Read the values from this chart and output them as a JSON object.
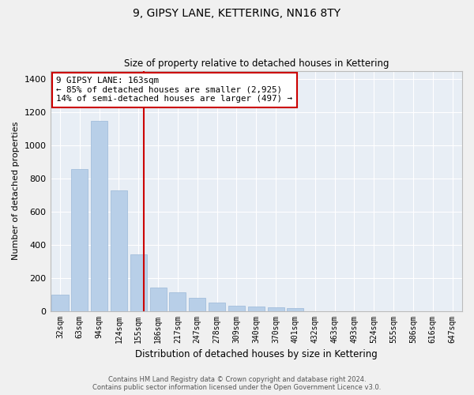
{
  "title": "9, GIPSY LANE, KETTERING, NN16 8TY",
  "subtitle": "Size of property relative to detached houses in Kettering",
  "xlabel": "Distribution of detached houses by size in Kettering",
  "ylabel": "Number of detached properties",
  "bar_color": "#b8cfe8",
  "bar_edge_color": "#9ab8d8",
  "background_color": "#e8eef5",
  "grid_color": "#ffffff",
  "vline_color": "#cc0000",
  "annotation_text": "9 GIPSY LANE: 163sqm\n← 85% of detached houses are smaller (2,925)\n14% of semi-detached houses are larger (497) →",
  "annotation_box_color": "#ffffff",
  "annotation_box_edge": "#cc0000",
  "categories": [
    "32sqm",
    "63sqm",
    "94sqm",
    "124sqm",
    "155sqm",
    "186sqm",
    "217sqm",
    "247sqm",
    "278sqm",
    "309sqm",
    "340sqm",
    "370sqm",
    "401sqm",
    "432sqm",
    "463sqm",
    "493sqm",
    "524sqm",
    "555sqm",
    "586sqm",
    "616sqm",
    "647sqm"
  ],
  "values": [
    98,
    858,
    1148,
    728,
    340,
    143,
    110,
    78,
    52,
    33,
    28,
    23,
    18,
    0,
    0,
    0,
    0,
    0,
    0,
    0,
    0
  ],
  "vline_index": 4.26,
  "ylim": [
    0,
    1450
  ],
  "yticks": [
    0,
    200,
    400,
    600,
    800,
    1000,
    1200,
    1400
  ],
  "footer_line1": "Contains HM Land Registry data © Crown copyright and database right 2024.",
  "footer_line2": "Contains public sector information licensed under the Open Government Licence v3.0.",
  "figsize": [
    6.0,
    5.0
  ],
  "dpi": 100
}
